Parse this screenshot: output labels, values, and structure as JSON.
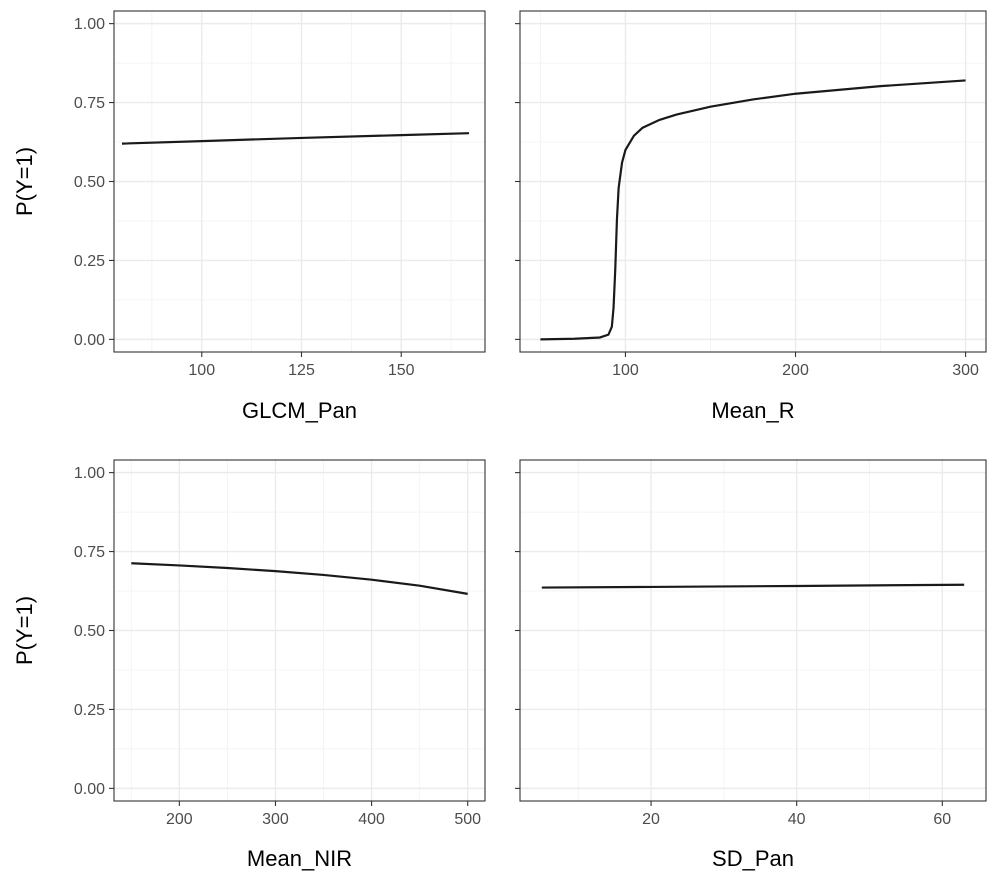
{
  "chart_data": [
    {
      "type": "line",
      "xlabel": "GLCM_Pan",
      "ylabel": "P(Y=1)",
      "xlim": [
        78,
        171
      ],
      "ylim": [
        -0.04,
        1.04
      ],
      "xticks": [
        100,
        125,
        150
      ],
      "yticks": [
        0.0,
        0.25,
        0.5,
        0.75,
        1.0
      ],
      "ytick_labels": [
        "0.00",
        "0.25",
        "0.50",
        "0.75",
        "1.00"
      ],
      "grid": true,
      "series": [
        {
          "x": [
            80,
            100,
            125,
            150,
            167
          ],
          "y": [
            0.62,
            0.628,
            0.638,
            0.647,
            0.653
          ]
        }
      ]
    },
    {
      "type": "line",
      "xlabel": "Mean_R",
      "ylabel": "",
      "xlim": [
        38,
        312
      ],
      "ylim": [
        -0.04,
        1.04
      ],
      "xticks": [
        100,
        200,
        300
      ],
      "yticks": [
        0.0,
        0.25,
        0.5,
        0.75,
        1.0
      ],
      "ytick_labels": [
        "",
        "",
        "",
        "",
        ""
      ],
      "grid": true,
      "series": [
        {
          "x": [
            50,
            70,
            85,
            90,
            92,
            93,
            94,
            95,
            96,
            98,
            100,
            105,
            110,
            120,
            130,
            150,
            175,
            200,
            250,
            300
          ],
          "y": [
            0.0,
            0.002,
            0.006,
            0.015,
            0.04,
            0.1,
            0.22,
            0.38,
            0.48,
            0.56,
            0.6,
            0.645,
            0.67,
            0.695,
            0.712,
            0.737,
            0.76,
            0.778,
            0.802,
            0.82
          ]
        }
      ]
    },
    {
      "type": "line",
      "xlabel": "Mean_NIR",
      "ylabel": "P(Y=1)",
      "xlim": [
        132,
        518
      ],
      "ylim": [
        -0.04,
        1.04
      ],
      "xticks": [
        200,
        300,
        400,
        500
      ],
      "yticks": [
        0.0,
        0.25,
        0.5,
        0.75,
        1.0
      ],
      "ytick_labels": [
        "0.00",
        "0.25",
        "0.50",
        "0.75",
        "1.00"
      ],
      "grid": true,
      "series": [
        {
          "x": [
            150,
            200,
            250,
            300,
            350,
            400,
            450,
            500
          ],
          "y": [
            0.713,
            0.706,
            0.698,
            0.688,
            0.676,
            0.661,
            0.642,
            0.616
          ]
        }
      ]
    },
    {
      "type": "line",
      "xlabel": "SD_Pan",
      "ylabel": "",
      "xlim": [
        2,
        66
      ],
      "ylim": [
        -0.04,
        1.04
      ],
      "xticks": [
        20,
        40,
        60
      ],
      "yticks": [
        0.0,
        0.25,
        0.5,
        0.75,
        1.0
      ],
      "ytick_labels": [
        "",
        "",
        "",
        "",
        ""
      ],
      "grid": true,
      "series": [
        {
          "x": [
            5,
            20,
            40,
            63
          ],
          "y": [
            0.636,
            0.638,
            0.641,
            0.645
          ]
        }
      ]
    }
  ]
}
